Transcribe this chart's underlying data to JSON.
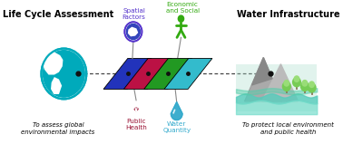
{
  "title_left": "Life Cycle Assessment",
  "title_right": "Water Infrastructure",
  "subtitle_left": "To assess global\nenvironmental impacts",
  "subtitle_right": "To protect local environment\nand public health",
  "label_spatial": "Spatial\nFactors",
  "label_economic": "Economic\nand Social",
  "label_health": "Public\nHealth",
  "label_water": "Water\nQuantity",
  "panel_colors": [
    "#2233bb",
    "#bb1144",
    "#229922",
    "#33bbcc"
  ],
  "globe_color": "#00aabb",
  "dot_color": "#111111",
  "dashed_line_color": "#444444",
  "bg_color": "#ffffff",
  "spatial_label_color": "#5533cc",
  "economic_label_color": "#33aa11",
  "health_label_color": "#991133",
  "water_label_color": "#33aacc",
  "fig_width": 3.78,
  "fig_height": 1.59,
  "xlim": [
    0,
    10
  ],
  "ylim": [
    0,
    4.2
  ]
}
